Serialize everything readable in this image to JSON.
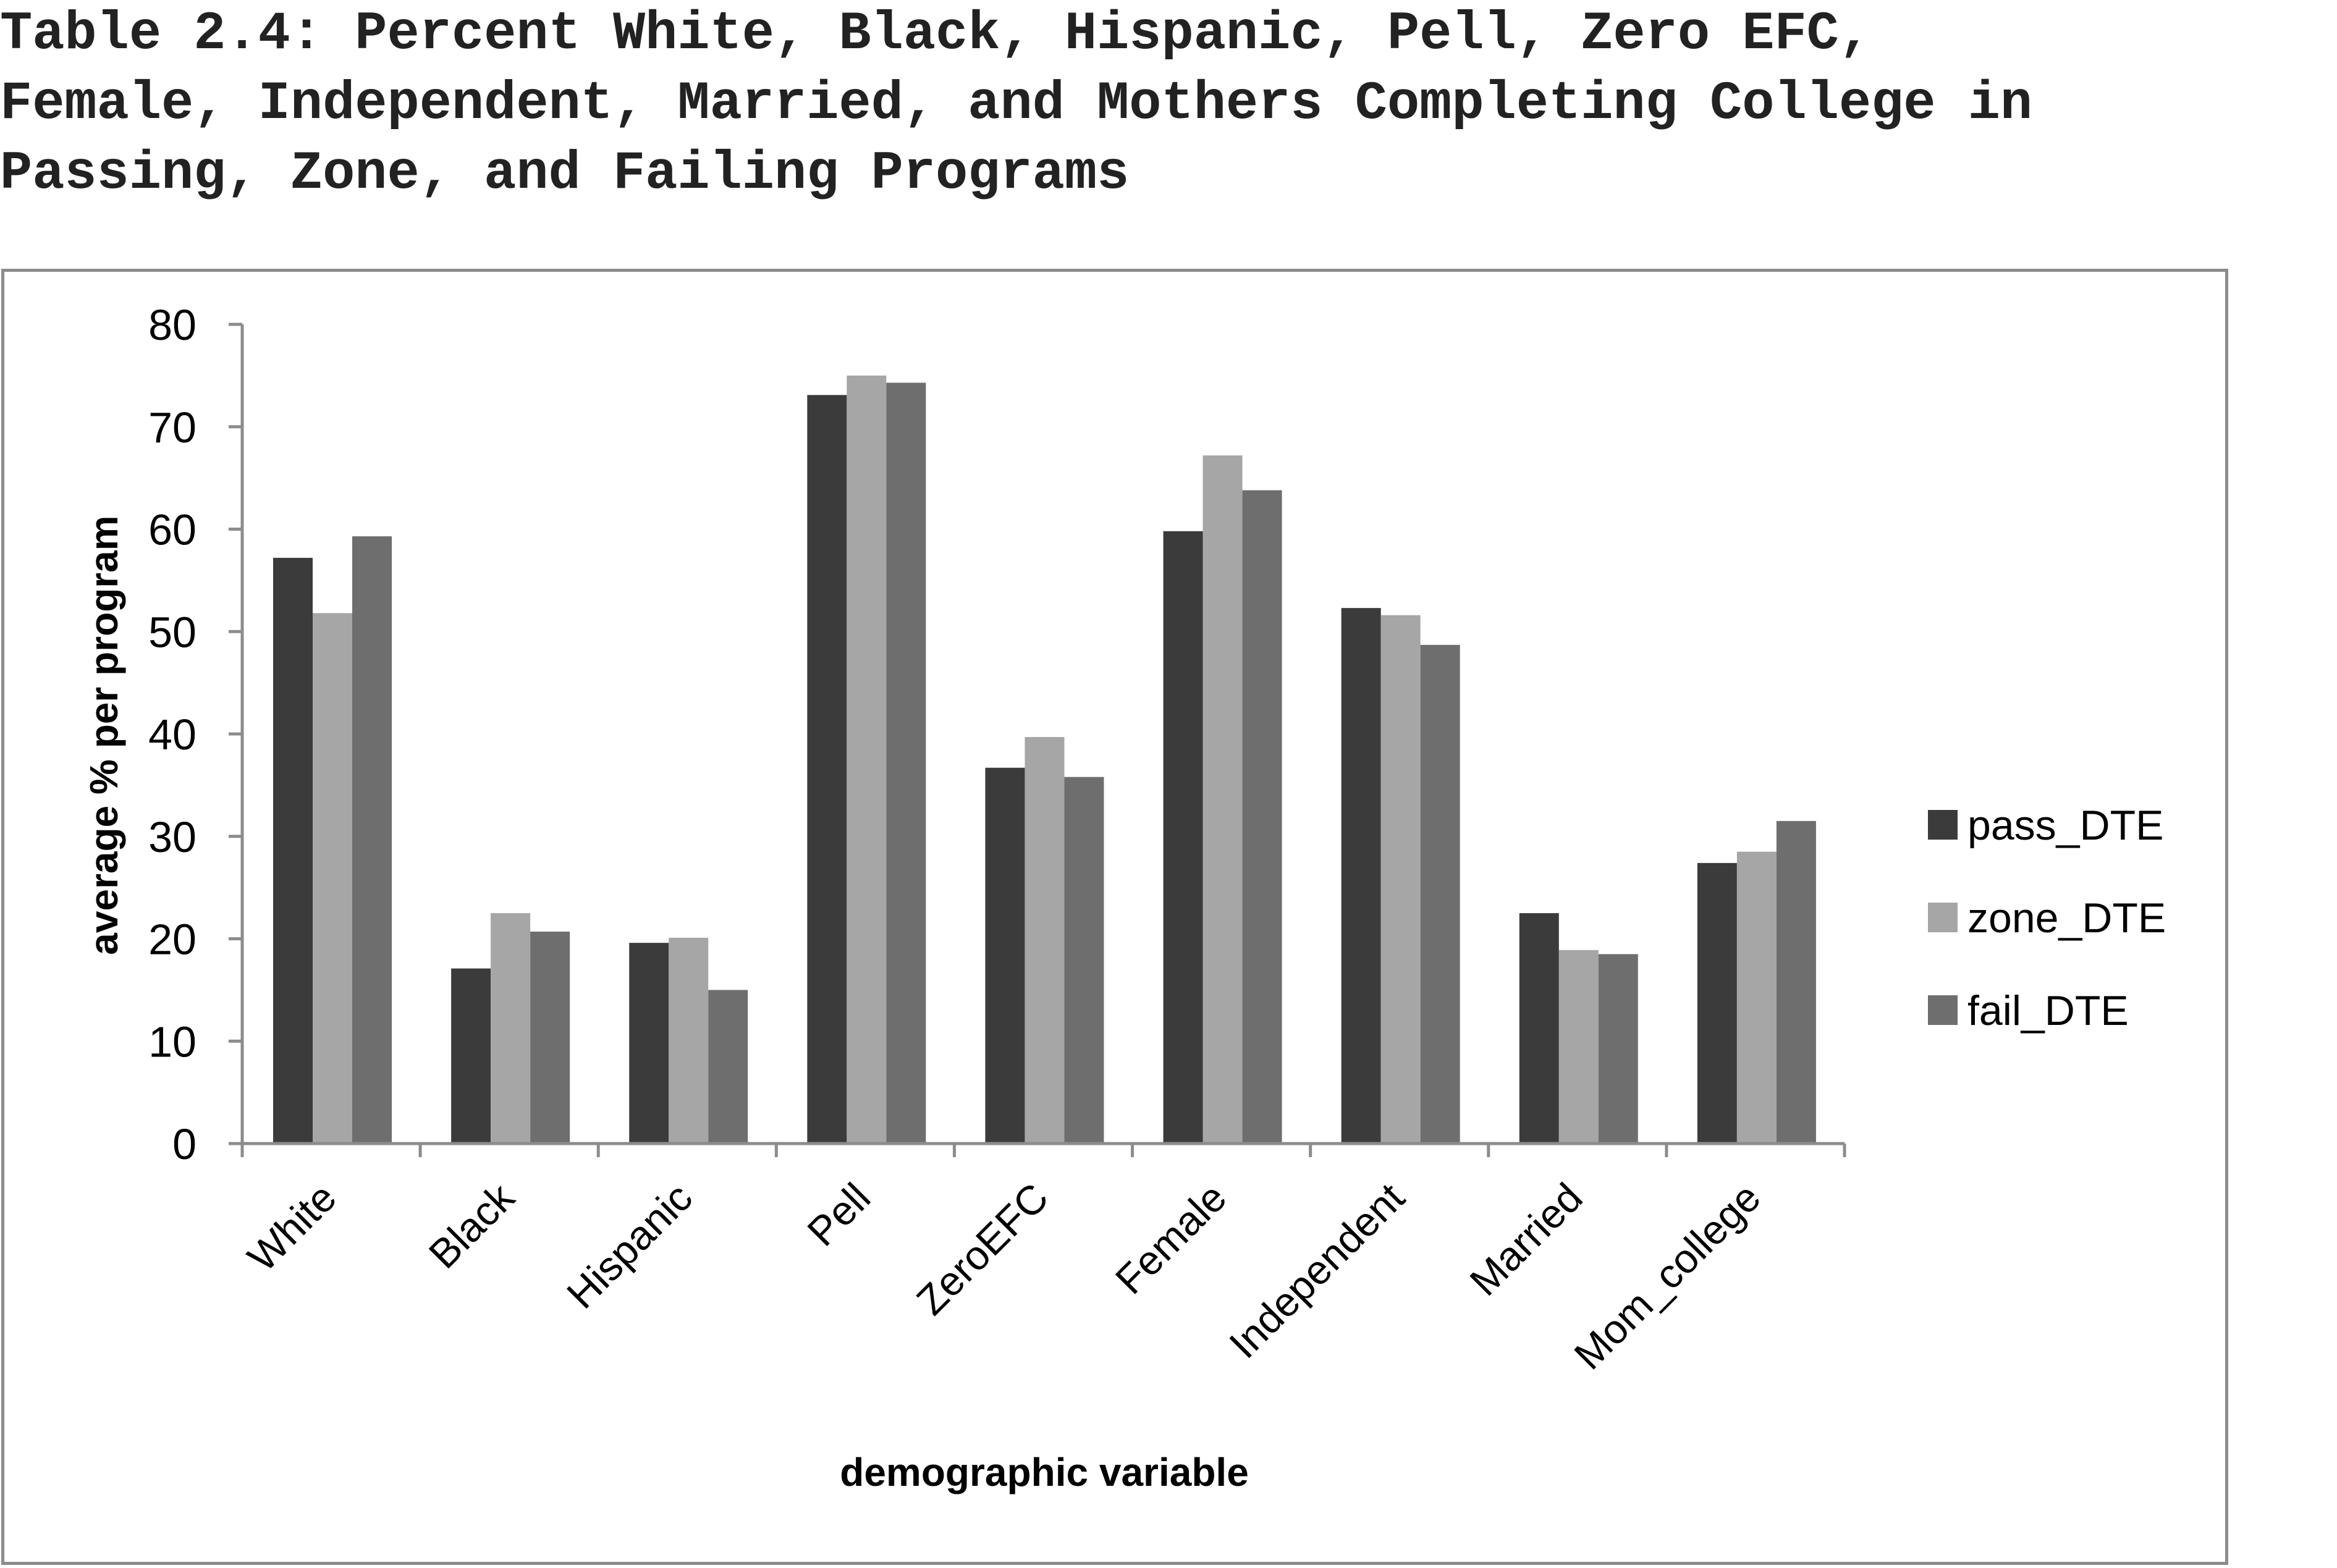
{
  "title_lines": [
    "Table 2.4: Percent White, Black, Hispanic, Pell, Zero EFC,",
    "Female, Independent, Married, and Mothers Completing College in",
    "Passing, Zone, and Failing Programs"
  ],
  "chart_data": {
    "type": "bar",
    "categories": [
      "White",
      "Black",
      "Hispanic",
      "Pell",
      "ZeroEFC",
      "Female",
      "Independent",
      "Married",
      "Mom_college"
    ],
    "series": [
      {
        "name": "pass_DTE",
        "color": "#3b3b3b",
        "values": [
          57.2,
          17.1,
          19.6,
          73.1,
          36.7,
          59.8,
          52.3,
          22.5,
          27.4
        ]
      },
      {
        "name": "zone_DTE",
        "color": "#a6a6a6",
        "values": [
          51.8,
          22.5,
          20.1,
          75.0,
          39.7,
          67.2,
          51.6,
          18.9,
          28.5
        ]
      },
      {
        "name": "fail_DTE",
        "color": "#6e6e6e",
        "values": [
          59.3,
          20.7,
          15.0,
          74.3,
          35.8,
          63.8,
          48.7,
          18.5,
          31.5
        ]
      }
    ],
    "xlabel": "demographic variable",
    "ylabel": "average % per program",
    "ylim": [
      0,
      80
    ],
    "yticks": [
      0,
      10,
      20,
      30,
      40,
      50,
      60,
      70,
      80
    ],
    "grid": false,
    "legend_position": "right"
  }
}
